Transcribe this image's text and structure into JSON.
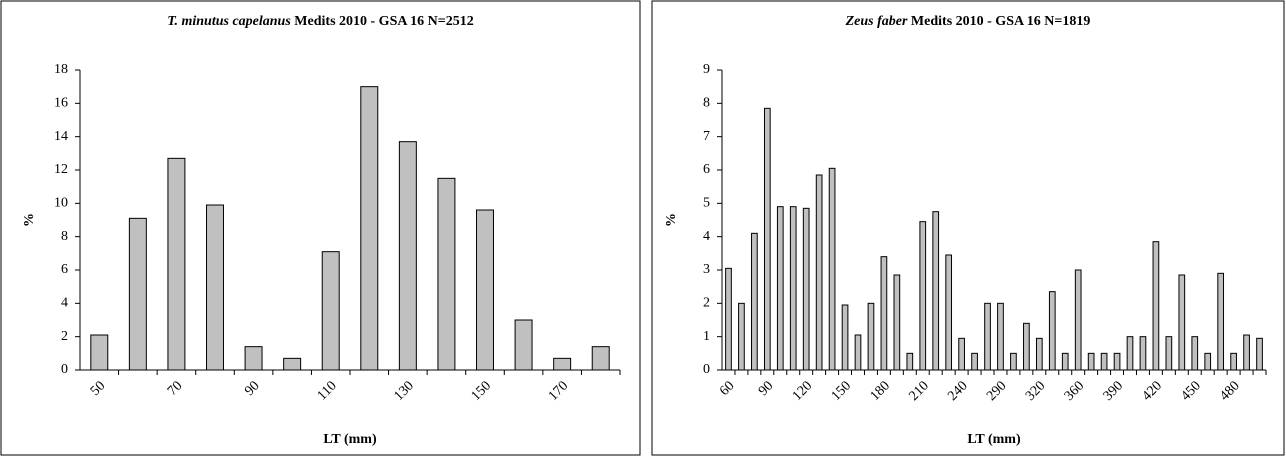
{
  "chart_data": [
    {
      "type": "bar",
      "title_species": "T. minutus capelanus",
      "title": "Medits 2010 - GSA 16 N=2512",
      "xlabel": "LT (mm)",
      "ylabel": "%",
      "categories": [
        "50",
        null,
        "70",
        null,
        "90",
        null,
        "110",
        null,
        "130",
        null,
        "150",
        null,
        "170",
        null
      ],
      "values": [
        2.1,
        9.1,
        12.7,
        9.9,
        1.4,
        0.7,
        7.1,
        17.0,
        13.7,
        11.5,
        9.6,
        3.0,
        0.7,
        1.4
      ],
      "color": "#c0c0c0",
      "ylim": [
        0,
        18
      ],
      "yticks": [
        0,
        2,
        4,
        6,
        8,
        10,
        12,
        14,
        16,
        18
      ],
      "grid": false
    },
    {
      "type": "bar",
      "title_species": "Zeus faber",
      "title": "Medits 2010 - GSA 16 N=1819",
      "xlabel": "LT (mm)",
      "ylabel": "%",
      "categories": [
        "60",
        null,
        null,
        "90",
        null,
        null,
        "120",
        null,
        null,
        "150",
        null,
        null,
        "180",
        null,
        null,
        "210",
        null,
        null,
        "240",
        null,
        null,
        "290",
        null,
        null,
        "320",
        null,
        null,
        "360",
        null,
        null,
        "390",
        null,
        null,
        "420",
        null,
        null,
        "450",
        null,
        null,
        "480",
        null,
        null
      ],
      "values": [
        3.05,
        2.0,
        4.1,
        7.85,
        4.9,
        4.9,
        4.85,
        5.85,
        6.05,
        1.95,
        1.05,
        2.0,
        3.4,
        2.85,
        0.5,
        4.45,
        4.75,
        3.45,
        0.95,
        0.5,
        2.0,
        2.0,
        0.5,
        1.4,
        0.95,
        2.35,
        0.5,
        3.0,
        0.5,
        0.5,
        0.5,
        1.0,
        1.0,
        3.85,
        1.0,
        2.85,
        1.0,
        0.5,
        2.9,
        0.5,
        1.05,
        0.95
      ],
      "color": "#c0c0c0",
      "ylim": [
        0,
        9
      ],
      "yticks": [
        0,
        1,
        2,
        3,
        4,
        5,
        6,
        7,
        8,
        9
      ],
      "grid": false
    }
  ]
}
